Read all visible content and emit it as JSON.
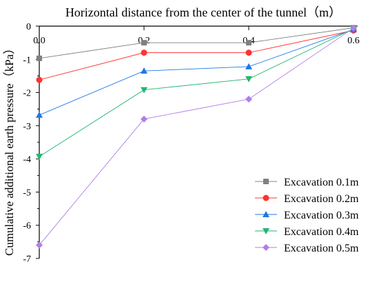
{
  "chart_data": {
    "type": "line",
    "title": "Horizontal distance from the center of the tunnel（m）",
    "xlabel": "Horizontal distance from the center of the tunnel（m）",
    "ylabel": "Cumulative additional earth pressure（kPa）",
    "x": [
      0.0,
      0.2,
      0.4,
      0.6
    ],
    "x_tick_labels": [
      "0.0",
      "0.2",
      "0.4",
      "0.6"
    ],
    "xlim": [
      0.0,
      0.6
    ],
    "ylim": [
      -7,
      0
    ],
    "y_ticks": [
      0,
      -1,
      -2,
      -3,
      -4,
      -5,
      -6,
      -7
    ],
    "x_axis_position": "top",
    "grid": false,
    "legend_position": "bottom-right",
    "series": [
      {
        "name": "Excavation 0.1m",
        "values": [
          -0.97,
          -0.5,
          -0.5,
          -0.05
        ],
        "color": "#808080",
        "marker": "square"
      },
      {
        "name": "Excavation 0.2m",
        "values": [
          -1.62,
          -0.8,
          -0.8,
          -0.13
        ],
        "color": "#ff3333",
        "marker": "circle"
      },
      {
        "name": "Excavation 0.3m",
        "values": [
          -2.68,
          -1.35,
          -1.22,
          -0.1
        ],
        "color": "#1f77e8",
        "marker": "triangle-up"
      },
      {
        "name": "Excavation 0.4m",
        "values": [
          -3.93,
          -1.92,
          -1.59,
          -0.08
        ],
        "color": "#22b573",
        "marker": "triangle-down"
      },
      {
        "name": "Excavation 0.5m",
        "values": [
          -6.6,
          -2.8,
          -2.2,
          -0.06
        ],
        "color": "#b07ee8",
        "marker": "diamond"
      }
    ]
  }
}
